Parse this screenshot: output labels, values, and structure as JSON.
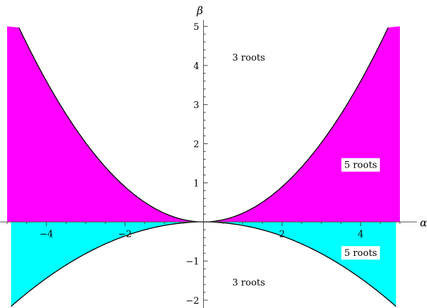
{
  "chart_data": {
    "type": "area",
    "title": "",
    "xlabel": "α",
    "ylabel": "β",
    "xlim": [
      -5.0,
      5.0
    ],
    "ylim": [
      -2.0,
      5.0
    ],
    "x_ticks": [
      -4,
      -2,
      2,
      4
    ],
    "x_tick_labels": [
      "−4",
      "−2",
      "2",
      "4"
    ],
    "y_ticks": [
      -2,
      -1,
      1,
      2,
      3,
      4,
      5
    ],
    "y_tick_labels": [
      "−2",
      "−1",
      "1",
      "2",
      "3",
      "4",
      "5"
    ],
    "grid": false,
    "curves": [
      {
        "description": "upper boundary",
        "formula": "β = 0.225 α²",
        "x_range": [
          -4.7,
          4.7
        ]
      },
      {
        "description": "lower boundary",
        "formula": "β = -0.09 α²",
        "x_range": [
          -4.9,
          4.9
        ]
      }
    ],
    "regions": [
      {
        "name": "upper-band",
        "color": "#ff00ff"
      },
      {
        "name": "lower-band",
        "color": "#00ffff"
      }
    ],
    "annotations": [
      {
        "text": "3 roots",
        "x": 1.15,
        "y": 4.2,
        "boxed": false
      },
      {
        "text": "5 roots",
        "x": 4.0,
        "y": 1.45,
        "boxed": true
      },
      {
        "text": "5 roots",
        "x": 4.0,
        "y": -0.8,
        "boxed": true
      },
      {
        "text": "3 roots",
        "x": 1.15,
        "y": -1.55,
        "boxed": false
      }
    ]
  }
}
